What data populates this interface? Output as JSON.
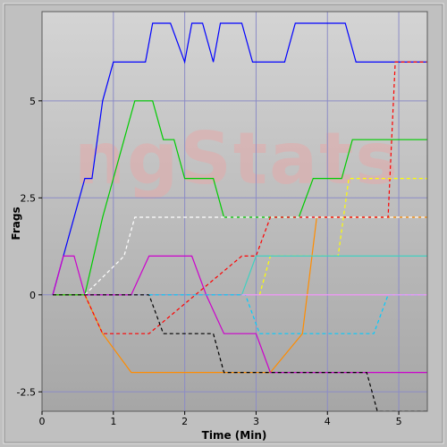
{
  "chart_data": {
    "type": "line",
    "title": "",
    "xlabel": "Time (Min)",
    "ylabel": "Frags",
    "xlim": [
      0,
      5.4
    ],
    "ylim": [
      -3,
      7.3
    ],
    "xticks": [
      0,
      1,
      2,
      3,
      4,
      5
    ],
    "xtick_labels": [
      "0",
      "1",
      "2",
      "3",
      "4",
      "5"
    ],
    "yticks": [
      -2.5,
      0,
      2.5,
      5
    ],
    "ytick_labels": [
      "-2.5",
      "0",
      "2.5",
      "5"
    ],
    "grid": true,
    "legend": "none",
    "watermark": "ngStats",
    "colors": {
      "background": "#c0c0c0",
      "plot_top": "#d4d4d4",
      "plot_bottom": "#a6a6a6",
      "grid": "#8c8cc6",
      "watermark": "#e3aaaa"
    },
    "series": [
      {
        "color": "#ff8c00",
        "dashed": false,
        "x": [
          0.15,
          0.6,
          0.85,
          1.25,
          2.8,
          3.2,
          3.65,
          3.85,
          3.9,
          3.95,
          4.85,
          5.4
        ],
        "y": [
          0,
          0,
          -1,
          -2,
          -2,
          -2,
          -1,
          2,
          2,
          2,
          2,
          2
        ]
      },
      {
        "color": "#00cc00",
        "dashed": false,
        "x": [
          0.15,
          0.6,
          0.85,
          1.0,
          1.3,
          1.55,
          1.7,
          1.85,
          2.0,
          2.4,
          2.55,
          3.6,
          3.8,
          4.2,
          4.35,
          5.4
        ],
        "y": [
          0,
          0,
          2,
          3,
          5,
          5,
          4,
          4,
          3,
          3,
          2,
          2,
          3,
          3,
          4,
          4
        ]
      },
      {
        "color": "#0000ff",
        "dashed": false,
        "x": [
          0.15,
          0.3,
          0.6,
          0.7,
          0.85,
          1.0,
          1.45,
          1.55,
          1.8,
          2.0,
          2.1,
          2.25,
          2.4,
          2.5,
          2.8,
          2.95,
          3.4,
          3.55,
          4.25,
          4.4,
          5.4
        ],
        "y": [
          0,
          1,
          3,
          3,
          5,
          6,
          6,
          7,
          7,
          6,
          7,
          7,
          6,
          7,
          7,
          6,
          6,
          7,
          7,
          6,
          6
        ]
      },
      {
        "color": "#cc00cc",
        "dashed": false,
        "x": [
          0.15,
          0.3,
          0.45,
          0.6,
          1.25,
          1.5,
          2.1,
          2.3,
          2.55,
          2.85,
          3.0,
          3.2,
          3.35,
          5.4
        ],
        "y": [
          0,
          1,
          1,
          0,
          0,
          1,
          1,
          0,
          -1,
          -1,
          -1,
          -2,
          -2,
          -2
        ]
      },
      {
        "color": "#ff0000",
        "dashed": true,
        "x": [
          0.6,
          0.85,
          1.0,
          1.5,
          2.8,
          3.0,
          3.2,
          4.85,
          4.95,
          5.1,
          5.4
        ],
        "y": [
          0,
          -1,
          -1,
          -1,
          1,
          1,
          2,
          2,
          6,
          6,
          6
        ]
      },
      {
        "color": "#ffffff",
        "dashed": true,
        "x": [
          0.6,
          1.15,
          1.3,
          2.0,
          3.0,
          5.4
        ],
        "y": [
          0,
          1,
          2,
          2,
          2,
          2
        ]
      },
      {
        "color": "#000000",
        "dashed": true,
        "x": [
          0.15,
          1.5,
          1.7,
          2.4,
          2.55,
          3.0,
          4.55,
          4.7,
          5.4
        ],
        "y": [
          0,
          0,
          -1,
          -1,
          -2,
          -2,
          -2,
          -3,
          -3
        ]
      },
      {
        "color": "#ffff00",
        "dashed": true,
        "x": [
          3.05,
          3.2,
          3.7,
          4.15,
          4.3,
          4.45,
          5.4
        ],
        "y": [
          0,
          1,
          1,
          1,
          3,
          3,
          3
        ]
      },
      {
        "color": "#00ccff",
        "dashed": true,
        "x": [
          1.5,
          2.85,
          3.05,
          3.3,
          4.65,
          4.85,
          5.4
        ],
        "y": [
          0,
          0,
          -1,
          -1,
          -1,
          0,
          0
        ]
      },
      {
        "color": "#40d0c0",
        "dashed": false,
        "x": [
          2.8,
          3.0,
          5.4
        ],
        "y": [
          0,
          1,
          1
        ]
      },
      {
        "color": "#ff99ff",
        "dashed": false,
        "x": [
          2.8,
          5.4
        ],
        "y": [
          0,
          0
        ]
      }
    ]
  }
}
